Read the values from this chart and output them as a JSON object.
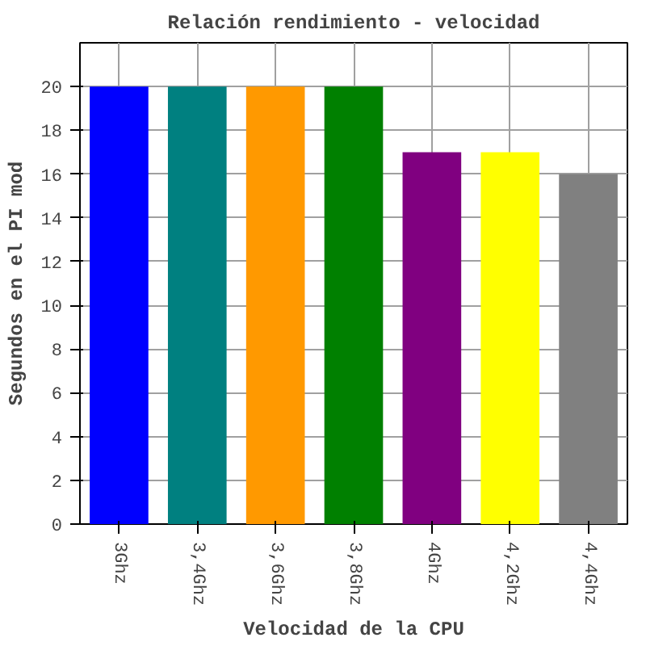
{
  "chart_data": {
    "type": "bar",
    "title": "Relación rendimiento - velocidad",
    "xlabel": "Velocidad de la CPU",
    "ylabel": "Segundos en el PI mod",
    "categories": [
      "3Ghz",
      "3,4Ghz",
      "3,6Ghz",
      "3,8Ghz",
      "4Ghz",
      "4,2Ghz",
      "4,4Ghz"
    ],
    "values": [
      20,
      20,
      20,
      20,
      17,
      17,
      16
    ],
    "colors": [
      "#0000ff",
      "#008080",
      "#ff9900",
      "#008000",
      "#800080",
      "#ffff00",
      "#808080"
    ],
    "ylim": [
      0,
      22
    ],
    "yticks": [
      0,
      2,
      4,
      6,
      8,
      10,
      12,
      14,
      16,
      18,
      20
    ],
    "grid": true
  }
}
